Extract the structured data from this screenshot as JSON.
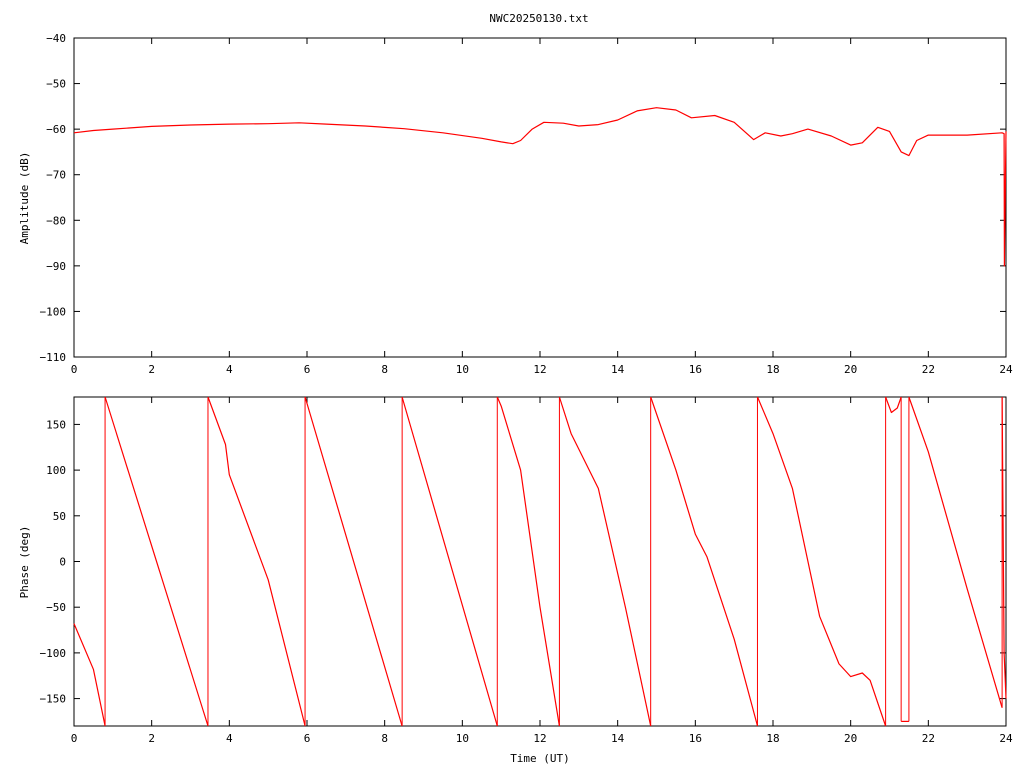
{
  "chart_data": [
    {
      "type": "line",
      "title": "NWC20250130.txt",
      "xlabel": "",
      "ylabel": "Amplitude (dB)",
      "xlim": [
        0,
        24
      ],
      "ylim": [
        -110,
        -40
      ],
      "xticks": [
        0,
        2,
        4,
        6,
        8,
        10,
        12,
        14,
        16,
        18,
        20,
        22,
        24
      ],
      "yticks": [
        -110,
        -100,
        -90,
        -80,
        -70,
        -60,
        -50,
        -40
      ],
      "ytick_labels": [
        "−110",
        "−100",
        "−90",
        "−80",
        "−70",
        "−60",
        "−50",
        "−40"
      ],
      "grid": false,
      "color": "#ff0000",
      "series": [
        {
          "points": [
            [
              0,
              -60.8
            ],
            [
              0.5,
              -60.3
            ],
            [
              1,
              -60.0
            ],
            [
              2,
              -59.4
            ],
            [
              3,
              -59.1
            ],
            [
              4,
              -58.9
            ],
            [
              5,
              -58.8
            ],
            [
              5.8,
              -58.6
            ],
            [
              6.5,
              -58.9
            ],
            [
              7.5,
              -59.3
            ],
            [
              8.5,
              -59.9
            ],
            [
              9.5,
              -60.8
            ],
            [
              10.5,
              -62.0
            ],
            [
              11,
              -62.8
            ],
            [
              11.3,
              -63.2
            ],
            [
              11.5,
              -62.5
            ],
            [
              11.8,
              -60.0
            ],
            [
              12.1,
              -58.5
            ],
            [
              12.6,
              -58.7
            ],
            [
              13,
              -59.3
            ],
            [
              13.5,
              -59.0
            ],
            [
              14,
              -58.0
            ],
            [
              14.5,
              -56.0
            ],
            [
              15,
              -55.3
            ],
            [
              15.5,
              -55.8
            ],
            [
              15.9,
              -57.5
            ],
            [
              16.5,
              -57.0
            ],
            [
              17,
              -58.5
            ],
            [
              17.5,
              -62.3
            ],
            [
              17.8,
              -60.8
            ],
            [
              18.2,
              -61.5
            ],
            [
              18.5,
              -61.0
            ],
            [
              18.9,
              -60.0
            ],
            [
              19.5,
              -61.5
            ],
            [
              20,
              -63.5
            ],
            [
              20.3,
              -63.0
            ],
            [
              20.7,
              -59.6
            ],
            [
              21,
              -60.5
            ],
            [
              21.3,
              -65.0
            ],
            [
              21.5,
              -65.8
            ],
            [
              21.7,
              -62.5
            ],
            [
              22,
              -61.3
            ],
            [
              23,
              -61.3
            ],
            [
              23.9,
              -60.8
            ],
            [
              23.95,
              -61.0
            ],
            [
              23.96,
              -90.0
            ],
            [
              24,
              -60.5
            ]
          ]
        }
      ]
    },
    {
      "type": "line",
      "title": "",
      "xlabel": "Time (UT)",
      "ylabel": "Phase (deg)",
      "xlim": [
        0,
        24
      ],
      "ylim": [
        -180,
        180
      ],
      "xticks": [
        0,
        2,
        4,
        6,
        8,
        10,
        12,
        14,
        16,
        18,
        20,
        22,
        24
      ],
      "yticks": [
        -150,
        -100,
        -50,
        0,
        50,
        100,
        150
      ],
      "ytick_labels": [
        "−150",
        "−100",
        "−50",
        "0",
        "50",
        "100",
        "150"
      ],
      "grid": false,
      "color": "#ff0000",
      "series": [
        {
          "points": [
            [
              0,
              -68
            ],
            [
              0.5,
              -118
            ],
            [
              0.8,
              -180
            ]
          ]
        },
        {
          "points": [
            [
              0.8,
              180
            ],
            [
              3.45,
              -180
            ]
          ]
        },
        {
          "points": [
            [
              3.45,
              180
            ],
            [
              3.9,
              128
            ],
            [
              4,
              95
            ],
            [
              5,
              -20
            ],
            [
              5.95,
              -180
            ]
          ]
        },
        {
          "points": [
            [
              5.95,
              180
            ],
            [
              8.45,
              -180
            ]
          ]
        },
        {
          "points": [
            [
              8.45,
              180
            ],
            [
              10.9,
              -180
            ]
          ]
        },
        {
          "points": [
            [
              10.9,
              180
            ],
            [
              11,
              170
            ],
            [
              11.5,
              100
            ],
            [
              12.0,
              -50
            ],
            [
              12.5,
              -180
            ]
          ]
        },
        {
          "points": [
            [
              12.5,
              180
            ],
            [
              12.8,
              140
            ],
            [
              13.5,
              80
            ],
            [
              14.2,
              -50
            ],
            [
              14.85,
              -180
            ]
          ]
        },
        {
          "points": [
            [
              14.85,
              180
            ],
            [
              15.5,
              100
            ],
            [
              16,
              30
            ],
            [
              16.3,
              5
            ],
            [
              17.0,
              -85
            ],
            [
              17.6,
              -180
            ]
          ]
        },
        {
          "points": [
            [
              17.6,
              180
            ],
            [
              18.0,
              140
            ],
            [
              18.5,
              80
            ],
            [
              19.2,
              -60
            ],
            [
              19.7,
              -112
            ],
            [
              20.0,
              -126
            ],
            [
              20.3,
              -122
            ],
            [
              20.5,
              -130
            ],
            [
              20.9,
              -180
            ]
          ]
        },
        {
          "points": [
            [
              20.9,
              180
            ],
            [
              21.05,
              163
            ],
            [
              21.2,
              168
            ],
            [
              21.3,
              180
            ]
          ]
        },
        {
          "points": [
            [
              21.3,
              -175
            ],
            [
              21.5,
              -175
            ]
          ]
        },
        {
          "points": [
            [
              21.5,
              180
            ],
            [
              22,
              120
            ],
            [
              23,
              -30
            ],
            [
              23.9,
              -160
            ]
          ]
        },
        {
          "points": [
            [
              23.9,
              180
            ],
            [
              23.95,
              -100
            ],
            [
              24,
              -150
            ]
          ]
        }
      ]
    }
  ]
}
